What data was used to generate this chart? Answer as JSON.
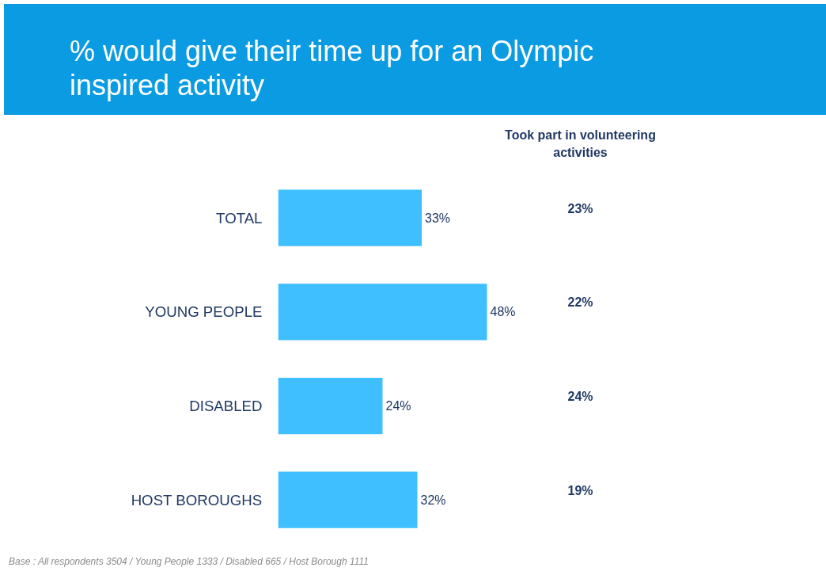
{
  "chart_data": {
    "type": "bar",
    "orientation": "horizontal",
    "title": "% would give their time up for an Olympic inspired activity",
    "categories": [
      "TOTAL",
      "YOUNG PEOPLE",
      "DISABLED",
      "HOST BOROUGHS"
    ],
    "values": [
      33,
      48,
      24,
      32
    ],
    "value_labels": [
      "33%",
      "48%",
      "24%",
      "32%"
    ],
    "color": "#3fbfff",
    "annotations": [
      "Took part in volunteering activities",
      "23%",
      "22%",
      "24%",
      "19%",
      "Base : All respondents 3504 / Young People 1333 / Disabled 665 / Host Borough 1111"
    ],
    "grid": false
  }
}
